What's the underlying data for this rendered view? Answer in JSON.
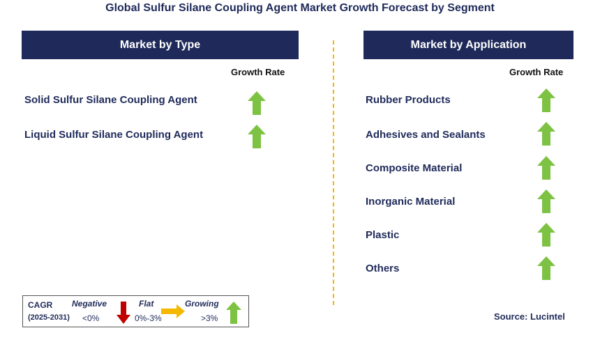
{
  "title": "Global Sulfur Silane Coupling Agent Market Growth Forecast by Segment",
  "left_panel": {
    "header": "Market by Type",
    "growth_label": "Growth Rate",
    "items": [
      {
        "label": "Solid Sulfur Silane Coupling Agent",
        "trend": "growing"
      },
      {
        "label": "Liquid Sulfur Silane Coupling Agent",
        "trend": "growing"
      }
    ]
  },
  "right_panel": {
    "header": "Market by Application",
    "growth_label": "Growth Rate",
    "items": [
      {
        "label": "Rubber Products",
        "trend": "growing"
      },
      {
        "label": "Adhesives and Sealants",
        "trend": "growing"
      },
      {
        "label": "Composite Material",
        "trend": "growing"
      },
      {
        "label": "Inorganic Material",
        "trend": "growing"
      },
      {
        "label": "Plastic",
        "trend": "growing"
      },
      {
        "label": "Others",
        "trend": "growing"
      }
    ]
  },
  "legend": {
    "cagr_label": "CAGR",
    "period": "(2025-2031)",
    "negative_label": "Negative",
    "negative_range": "<0%",
    "flat_label": "Flat",
    "flat_range": "0%-3%",
    "growing_label": "Growing",
    "growing_range": ">3%"
  },
  "source": "Source: Lucintel",
  "colors": {
    "header_bg": "#1f2a5a",
    "growing": "#7dc243",
    "negative": "#c00000",
    "flat": "#f5b800",
    "divider": "#f2b705"
  }
}
